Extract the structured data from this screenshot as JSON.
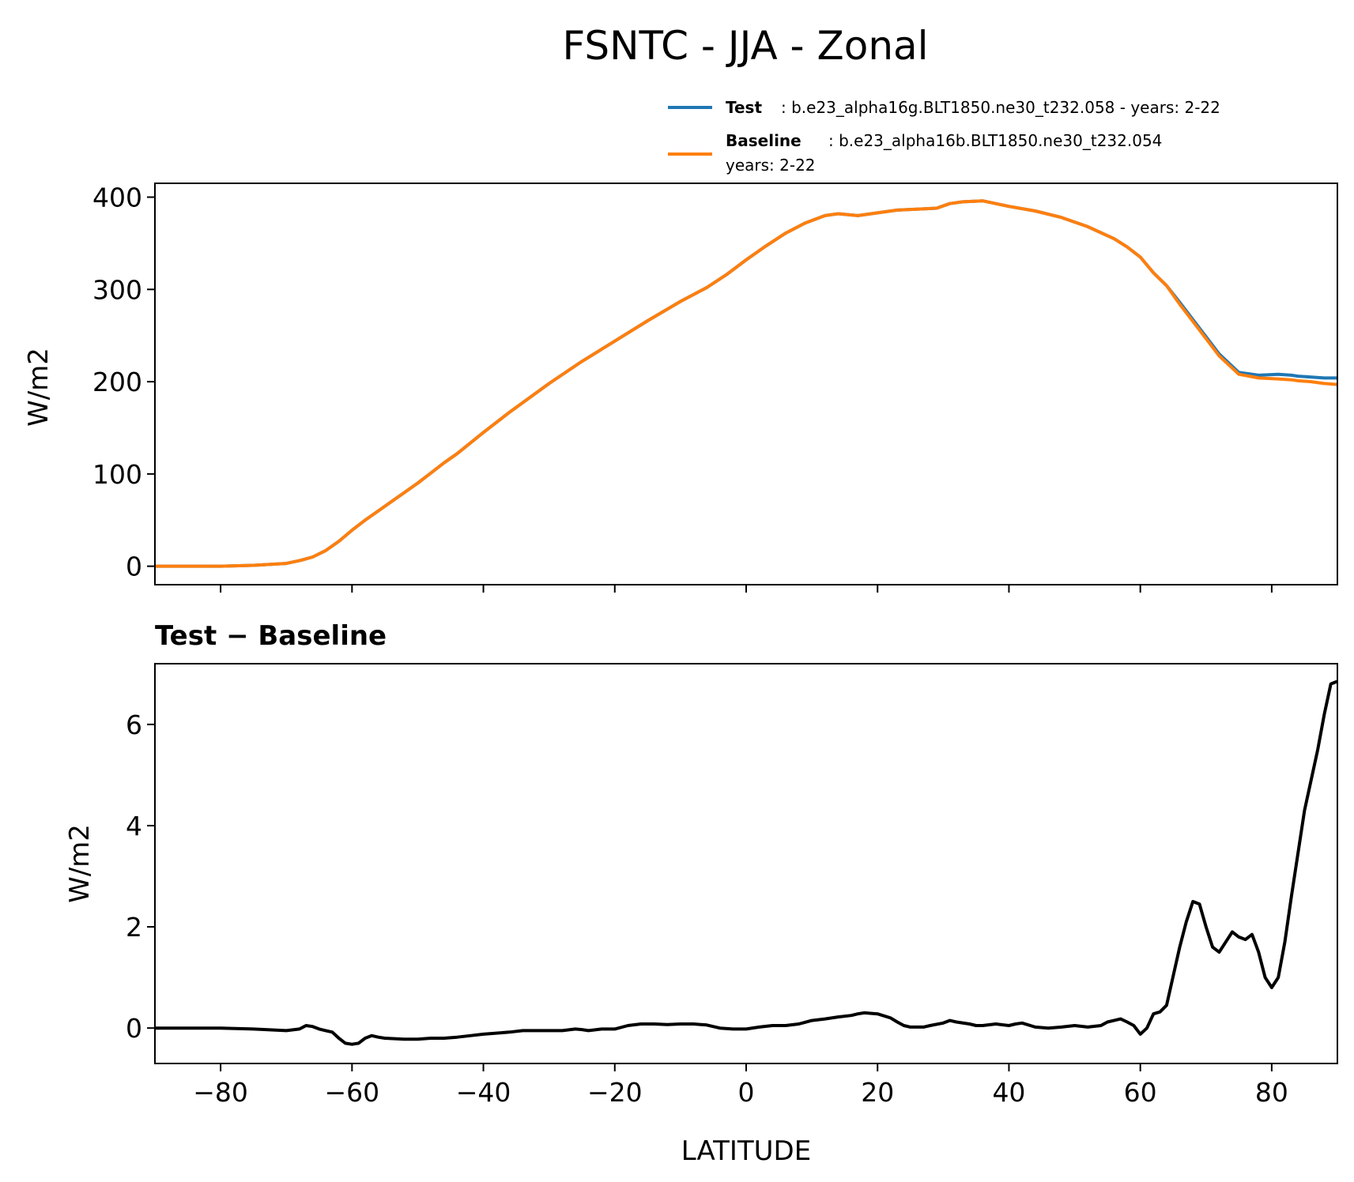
{
  "title": "FSNTC - JJA - Zonal",
  "legend": {
    "test_label": "Test",
    "test_text": ": b.e23_alpha16g.BLT1850.ne30_t232.058 - years: 2-22",
    "baseline_label": "Baseline",
    "baseline_text": ": b.e23_alpha16b.BLT1850.ne30_t232.054",
    "baseline_text2": "years: 2-22"
  },
  "colors": {
    "test": "#1f77b4",
    "baseline": "#ff7f0e",
    "diff": "#000000"
  },
  "chart_data": [
    {
      "type": "line",
      "xlim": [
        -90,
        90
      ],
      "ylim": [
        -20,
        415
      ],
      "ylabel": "W/m2",
      "xticks": [
        -80,
        -60,
        -40,
        -20,
        0,
        20,
        40,
        60,
        80
      ],
      "yticks": [
        0,
        100,
        200,
        300,
        400
      ],
      "ytick_labels": [
        "0",
        "100",
        "200",
        "300",
        "400"
      ],
      "legend_position": "above",
      "series": [
        {
          "name": "Test",
          "x": [
            -90,
            -80,
            -75,
            -70,
            -68,
            -66,
            -64,
            -62,
            -60,
            -58,
            -56,
            -54,
            -52,
            -50,
            -48,
            -46,
            -44,
            -40,
            -36,
            -30,
            -25,
            -20,
            -15,
            -10,
            -6,
            -3,
            0,
            3,
            6,
            9,
            12,
            14,
            17,
            20,
            23,
            26,
            29,
            31,
            33,
            36,
            38,
            40,
            44,
            48,
            52,
            56,
            58,
            60,
            62,
            64,
            66,
            69,
            72,
            75,
            78,
            81,
            83,
            84,
            86,
            88,
            90
          ],
          "y": [
            0,
            0,
            1,
            3,
            6,
            10,
            17,
            27,
            39,
            50,
            60,
            70,
            80,
            90,
            101,
            112,
            122,
            145,
            167,
            198,
            222,
            244,
            266,
            287,
            302,
            316,
            332,
            347,
            361,
            372,
            380,
            382,
            380,
            383,
            386,
            387,
            388,
            393,
            395,
            396,
            393,
            390,
            385,
            378,
            368,
            355,
            346,
            335,
            318,
            304,
            286,
            258,
            230,
            210,
            207,
            208,
            207,
            206,
            205,
            204,
            204
          ]
        },
        {
          "name": "Baseline",
          "x": [
            -90,
            -80,
            -75,
            -70,
            -68,
            -66,
            -64,
            -62,
            -60,
            -58,
            -56,
            -54,
            -52,
            -50,
            -48,
            -46,
            -44,
            -40,
            -36,
            -30,
            -25,
            -20,
            -15,
            -10,
            -6,
            -3,
            0,
            3,
            6,
            9,
            12,
            14,
            17,
            20,
            23,
            26,
            29,
            31,
            33,
            36,
            38,
            40,
            44,
            48,
            52,
            56,
            58,
            60,
            62,
            64,
            66,
            69,
            72,
            75,
            78,
            81,
            83,
            84,
            86,
            88,
            90
          ],
          "y": [
            0,
            0,
            1,
            3,
            6,
            10,
            17,
            27,
            39,
            50,
            60,
            70,
            80,
            90,
            101,
            112,
            122,
            145,
            167,
            198,
            222,
            244,
            266,
            287,
            302,
            316,
            332,
            347,
            361,
            372,
            380,
            382,
            380,
            383,
            386,
            387,
            388,
            393,
            395,
            396,
            393,
            390,
            385,
            378,
            368,
            355,
            346,
            335,
            318,
            304,
            284,
            256,
            228,
            208,
            204,
            203,
            202,
            201,
            200,
            198,
            197
          ]
        }
      ]
    },
    {
      "type": "line",
      "title": "Test − Baseline",
      "xlim": [
        -90,
        90
      ],
      "ylim": [
        -0.7,
        7.2
      ],
      "ylabel": "W/m2",
      "xlabel": "LATITUDE",
      "xticks": [
        -80,
        -60,
        -40,
        -20,
        0,
        20,
        40,
        60,
        80
      ],
      "xtick_labels": [
        "−80",
        "−60",
        "−40",
        "−20",
        "0",
        "20",
        "40",
        "60",
        "80"
      ],
      "yticks": [
        0,
        2,
        4,
        6
      ],
      "ytick_labels": [
        "0",
        "2",
        "4",
        "6"
      ],
      "series": [
        {
          "name": "Test − Baseline",
          "x": [
            -90,
            -80,
            -75,
            -70,
            -68,
            -67,
            -66,
            -65,
            -64,
            -63,
            -62,
            -61,
            -60,
            -59,
            -58,
            -57,
            -56,
            -55,
            -52,
            -50,
            -48,
            -46,
            -44,
            -42,
            -40,
            -36,
            -34,
            -30,
            -28,
            -26,
            -25,
            -24,
            -22,
            -20,
            -18,
            -16,
            -14,
            -12,
            -10,
            -8,
            -6,
            -4,
            -2,
            0,
            2,
            4,
            6,
            8,
            10,
            12,
            13,
            14,
            16,
            17,
            18,
            20,
            22,
            23,
            24,
            25,
            27,
            28,
            30,
            31,
            32,
            34,
            35,
            36,
            38,
            40,
            41,
            42,
            44,
            46,
            48,
            50,
            52,
            54,
            55,
            56,
            57,
            58,
            59,
            60,
            61,
            62,
            63,
            64,
            66,
            67,
            68,
            69,
            70,
            71,
            72,
            73,
            74,
            75,
            76,
            77,
            78,
            79,
            80,
            81,
            82,
            83,
            85,
            87,
            88,
            89,
            90
          ],
          "y": [
            0,
            0,
            -0.02,
            -0.05,
            -0.02,
            0.05,
            0.03,
            -0.02,
            -0.05,
            -0.08,
            -0.2,
            -0.3,
            -0.32,
            -0.3,
            -0.2,
            -0.15,
            -0.18,
            -0.2,
            -0.22,
            -0.22,
            -0.2,
            -0.2,
            -0.18,
            -0.15,
            -0.12,
            -0.08,
            -0.05,
            -0.05,
            -0.05,
            -0.02,
            -0.03,
            -0.05,
            -0.02,
            -0.02,
            0.05,
            0.08,
            0.08,
            0.07,
            0.08,
            0.08,
            0.06,
            0,
            -0.02,
            -0.02,
            0.02,
            0.05,
            0.05,
            0.08,
            0.15,
            0.18,
            0.2,
            0.22,
            0.25,
            0.28,
            0.3,
            0.28,
            0.2,
            0.12,
            0.05,
            0.02,
            0.02,
            0.05,
            0.1,
            0.15,
            0.12,
            0.08,
            0.05,
            0.05,
            0.08,
            0.05,
            0.08,
            0.1,
            0.02,
            0,
            0.02,
            0.05,
            0.02,
            0.05,
            0.12,
            0.15,
            0.18,
            0.12,
            0.05,
            -0.12,
            0,
            0.28,
            0.32,
            0.45,
            1.6,
            2.1,
            2.5,
            2.45,
            2.0,
            1.6,
            1.5,
            1.7,
            1.9,
            1.8,
            1.75,
            1.85,
            1.5,
            1.0,
            0.8,
            1.0,
            1.7,
            2.6,
            4.3,
            5.5,
            6.2,
            6.8,
            6.85
          ]
        }
      ]
    }
  ]
}
